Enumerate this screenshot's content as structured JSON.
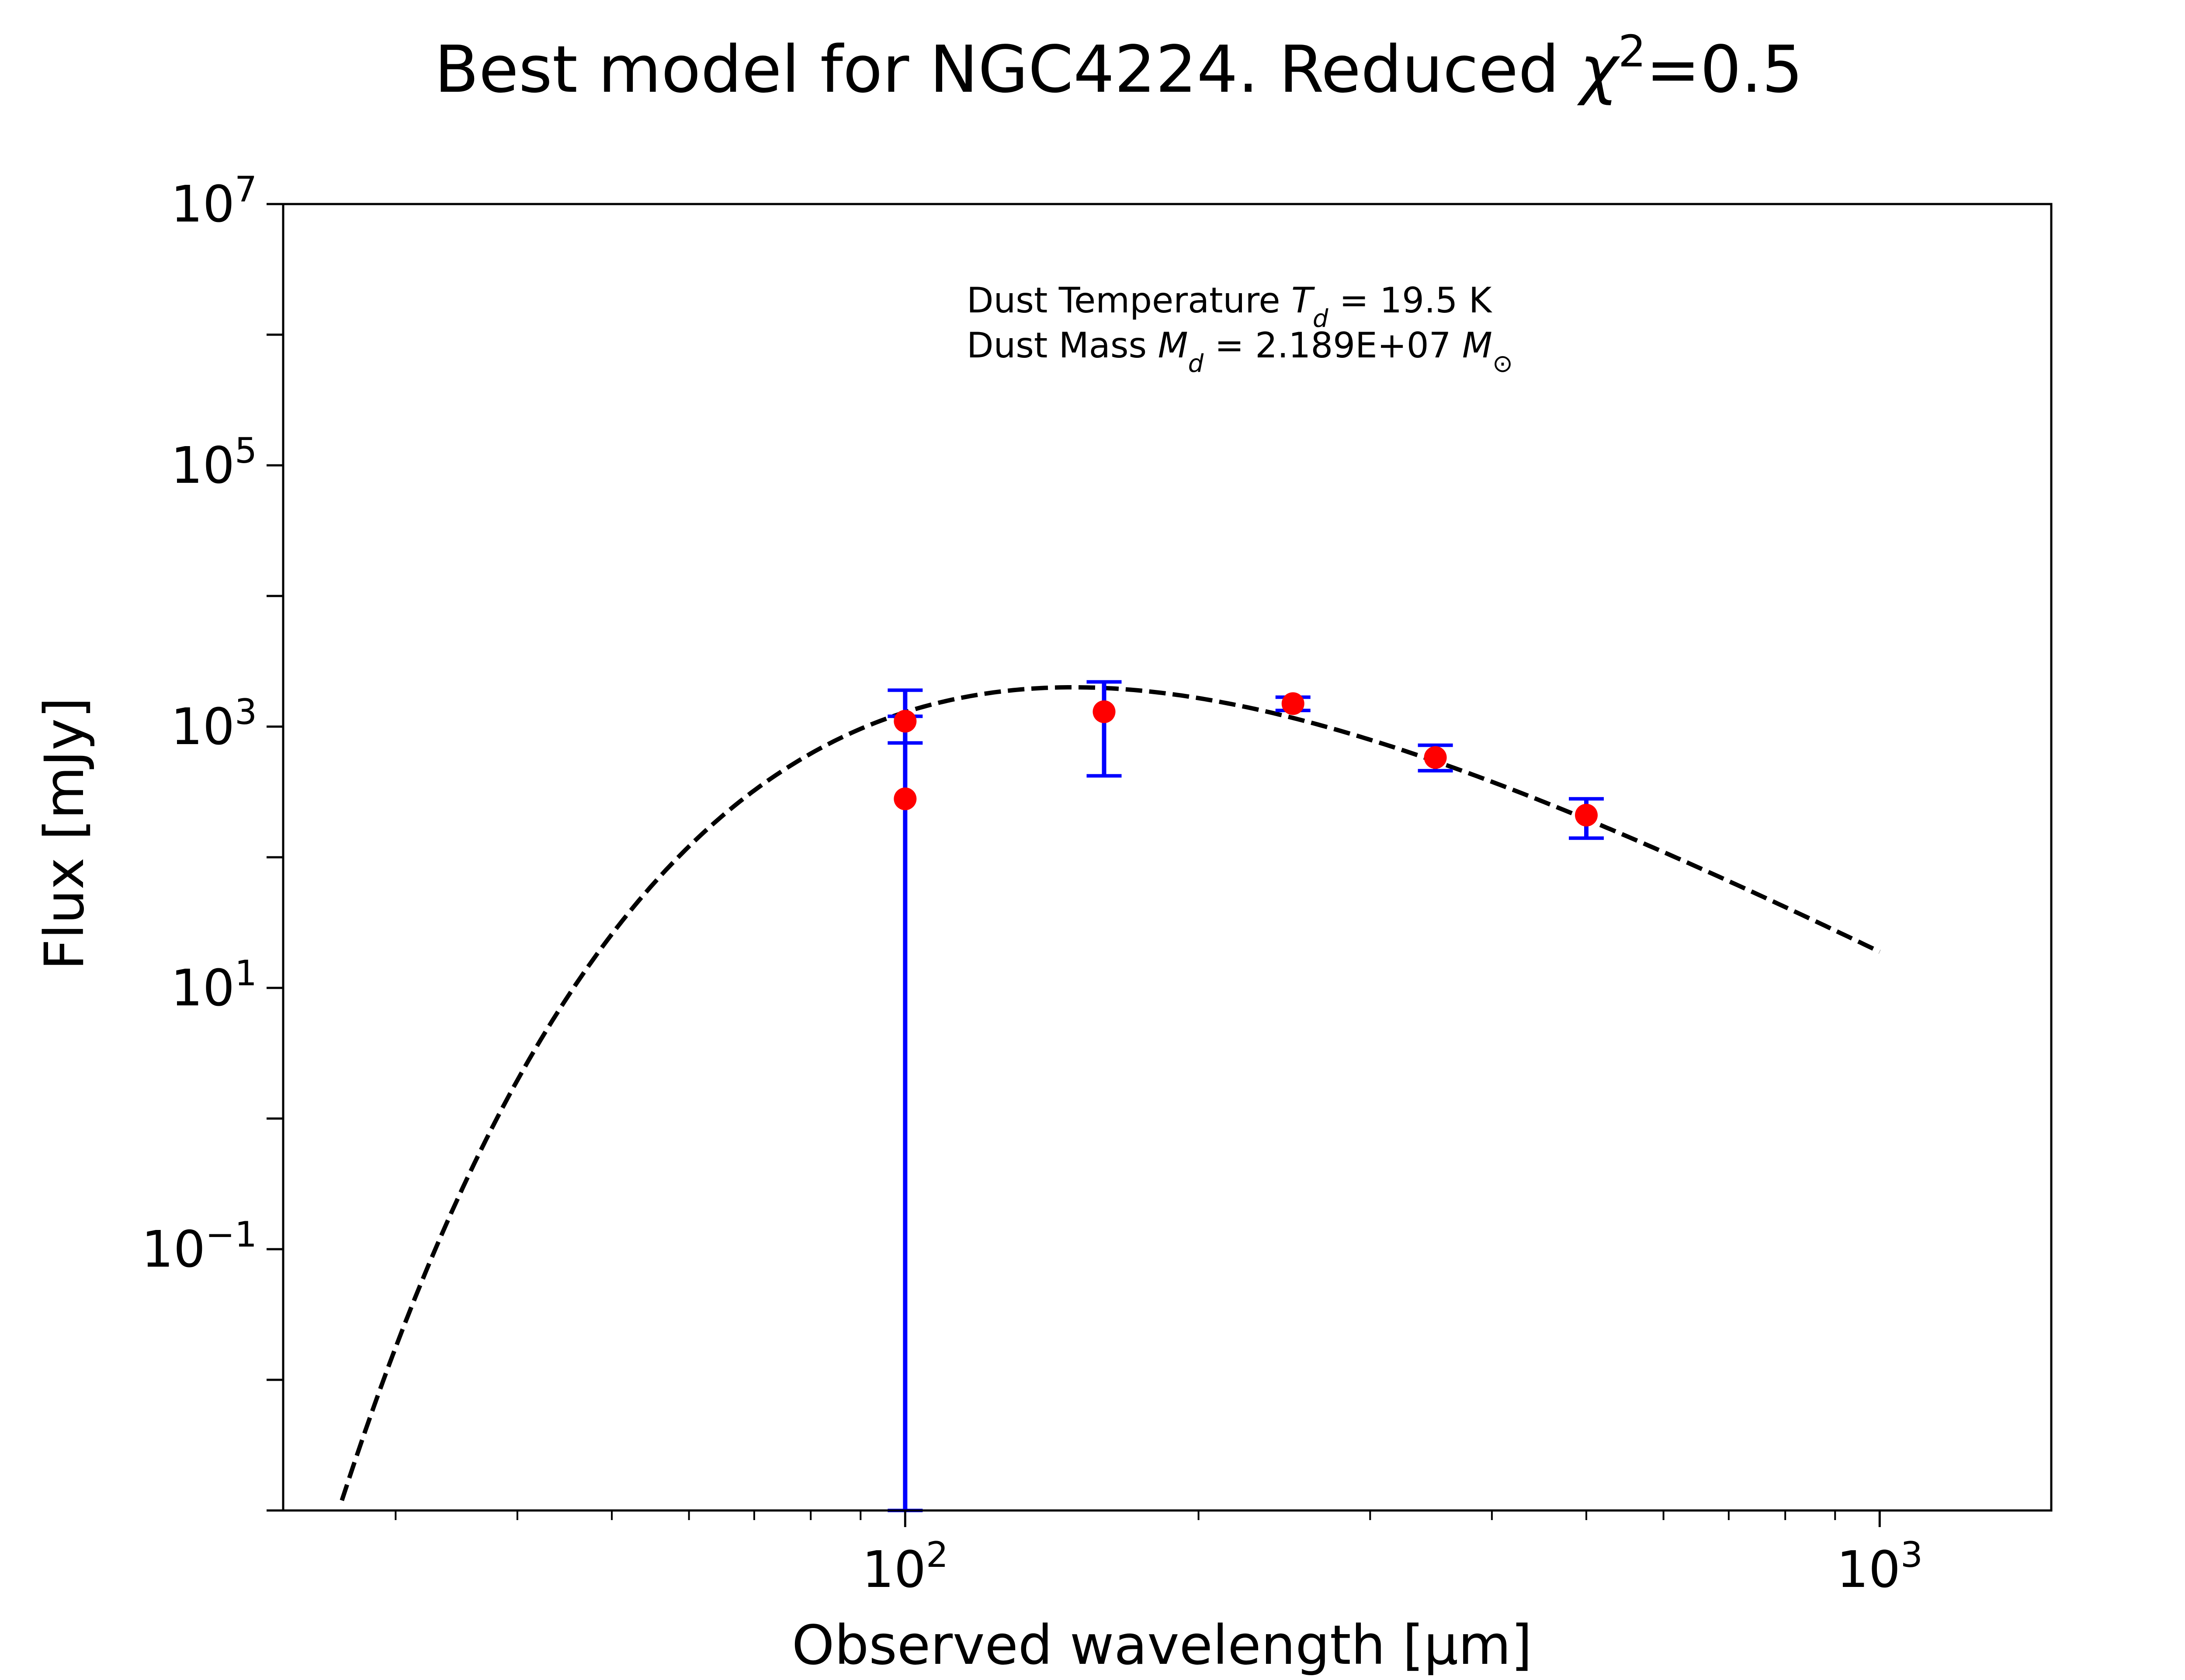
{
  "chart_data": {
    "type": "scatter",
    "title": "Best model for NGC4224. Reduced χ²=0.5",
    "title_parts": {
      "prefix": "Best model for NGC4224. Reduced ",
      "chi": "χ",
      "sup": "2",
      "suffix": "=0.5"
    },
    "xlabel": "Observed wavelength [μm]",
    "ylabel": "Flux [mJy]",
    "x_scale": "log",
    "y_scale": "log",
    "xlim": [
      23,
      1500
    ],
    "ylim": [
      0.001,
      10000000
    ],
    "x_ticks": [
      {
        "value": 100,
        "base": "10",
        "exp": "2"
      },
      {
        "value": 1000,
        "base": "10",
        "exp": "3"
      }
    ],
    "y_ticks": [
      {
        "value": 10000000,
        "base": "10",
        "exp": "7"
      },
      {
        "value": 100000,
        "base": "10",
        "exp": "5"
      },
      {
        "value": 1000,
        "base": "10",
        "exp": "3"
      },
      {
        "value": 10,
        "base": "10",
        "exp": "1"
      },
      {
        "value": 0.1,
        "base": "10",
        "exp": "−1"
      }
    ],
    "annotations": [
      {
        "text_before": "Dust Temperature ",
        "symbol": "T",
        "subscript": "d",
        "text_after": " = 19.5 K"
      },
      {
        "text_before": "Dust Mass ",
        "symbol": "M",
        "subscript": "d",
        "text_after": " = 2.189E+07 ",
        "symbol2": "M",
        "subscript2": "⊙"
      }
    ],
    "model": {
      "style": "black dashed",
      "temperature_K": 19.5,
      "beta": 2.0,
      "peak_flux_mJy": 2000,
      "x_range": [
        25,
        1000
      ]
    },
    "series": [
      {
        "marker": "red circle",
        "errorbar_color": "#0000ff",
        "points": [
          {
            "x": 100,
            "y": 1100,
            "ylow": 750,
            "yhigh": 1900
          },
          {
            "x": 100,
            "y": 280,
            "ylow": 0.001,
            "yhigh": 1200
          },
          {
            "x": 160,
            "y": 1300,
            "ylow": 420,
            "yhigh": 2200
          },
          {
            "x": 250,
            "y": 1500,
            "ylow": 1330,
            "yhigh": 1680
          },
          {
            "x": 350,
            "y": 580,
            "ylow": 460,
            "yhigh": 720
          },
          {
            "x": 500,
            "y": 210,
            "ylow": 140,
            "yhigh": 280
          }
        ]
      }
    ],
    "colors": {
      "model": "#000000",
      "points": "#ff0000",
      "errorbars": "#0000ff",
      "frame": "#000000"
    }
  }
}
